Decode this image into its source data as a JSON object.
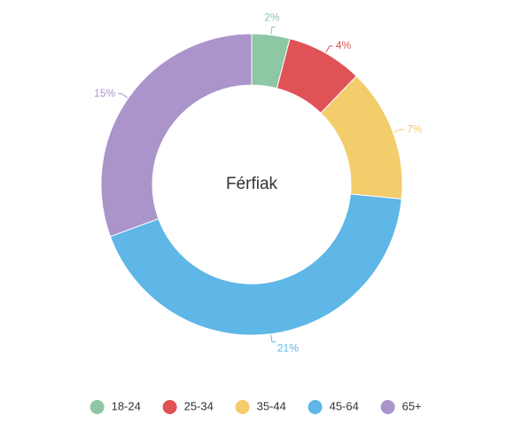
{
  "chart_data": {
    "type": "pie",
    "variant": "donut",
    "center_label": "Férfiak",
    "categories": [
      "18-24",
      "25-34",
      "35-44",
      "45-64",
      "65+"
    ],
    "values": [
      2,
      4,
      7,
      21,
      15
    ],
    "data_labels": [
      "2%",
      "4%",
      "7%",
      "21%",
      "15%"
    ],
    "colors": [
      "#8ec7a3",
      "#df5357",
      "#f3cc6b",
      "#5eb7e6",
      "#ab94ca"
    ],
    "legend": {
      "placement": "bottom",
      "entries": [
        "18-24",
        "25-34",
        "35-44",
        "45-64",
        "65+"
      ]
    }
  }
}
